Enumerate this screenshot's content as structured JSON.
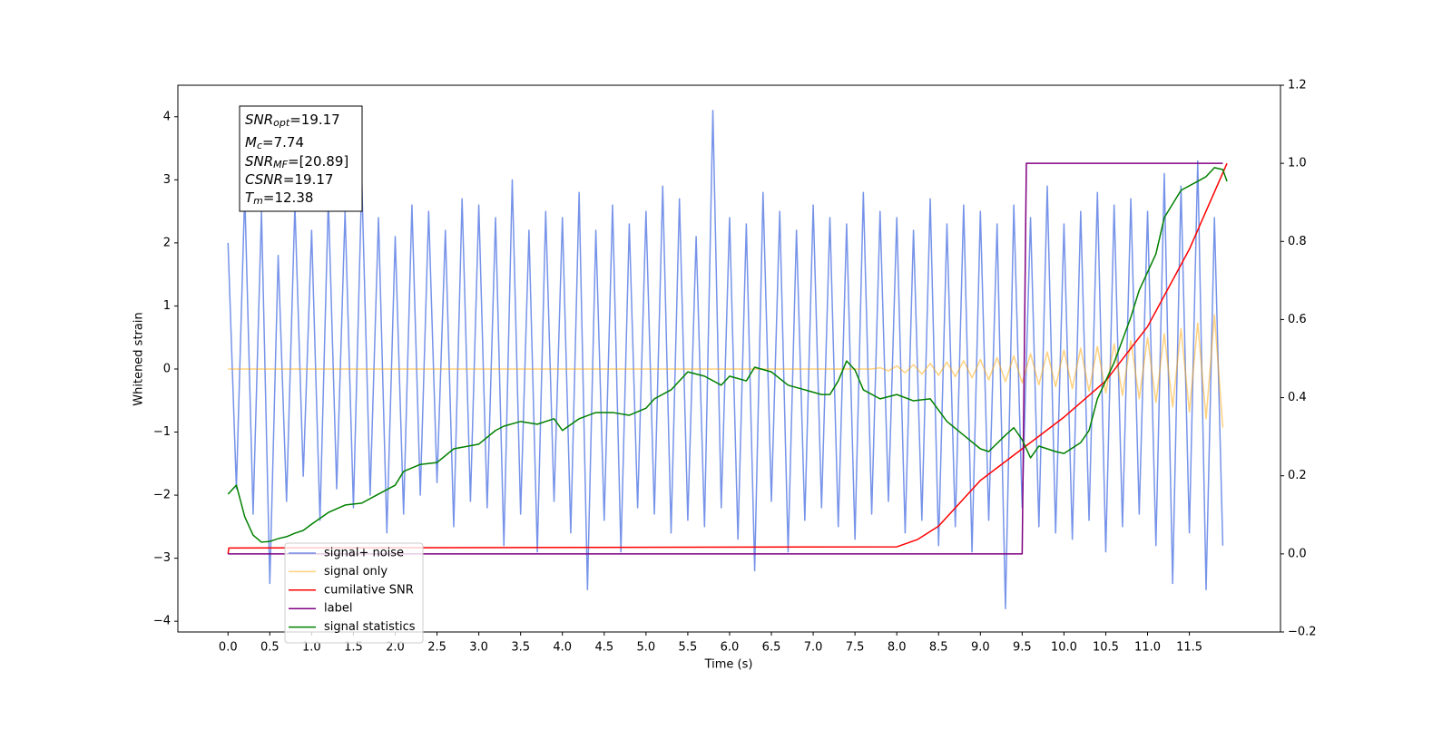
{
  "chart_data": {
    "type": "line",
    "xlabel": "Time (s)",
    "ylabel": "Whitened strain",
    "xlim": [
      -0.6,
      12.59
    ],
    "ylim": [
      -4.17,
      4.5
    ],
    "y2lim": [
      -0.2,
      1.2
    ],
    "xticks": [
      {
        "value": 0,
        "label": "0.0"
      },
      0.5,
      {
        "value": 1,
        "label": "1.0"
      },
      1.5,
      {
        "value": 2,
        "label": "2.0"
      },
      2.5,
      {
        "value": 3,
        "label": "3.0"
      },
      3.5,
      {
        "value": 4,
        "label": "4.0"
      },
      4.5,
      {
        "value": 5,
        "label": "5.0"
      },
      5.5,
      {
        "value": 6,
        "label": "6.0"
      },
      6.5,
      {
        "value": 7,
        "label": "7.0"
      },
      7.5,
      {
        "value": 8,
        "label": "8.0"
      },
      8.5,
      {
        "value": 9,
        "label": "9.0"
      },
      9.5,
      {
        "value": 10,
        "label": "10.0"
      },
      10.5,
      {
        "value": 11,
        "label": "11.0"
      },
      11.5
    ],
    "yticks": [
      {
        "value": -4,
        "label": "−4"
      },
      {
        "value": -3,
        "label": "−3"
      },
      {
        "value": -2,
        "label": "−2"
      },
      {
        "value": -1,
        "label": "−1"
      },
      0,
      1,
      2,
      3,
      4
    ],
    "y2ticks": [
      {
        "value": -0.2,
        "label": "−0.2"
      },
      {
        "value": 0,
        "label": "0.0"
      },
      0.2,
      0.4,
      0.6,
      0.8,
      {
        "value": 1,
        "label": "1.0"
      },
      1.2
    ],
    "legend": "lower left",
    "annotations": [
      {
        "text": "SNR",
        "sub": "opt",
        "rest": "=19.17"
      },
      {
        "text": "M",
        "sub": "c",
        "rest": "=7.74"
      },
      {
        "text": "SNR",
        "sub": "MF",
        "rest": "=[20.89]"
      },
      {
        "text": "CSNR",
        "rest": "=19.17"
      },
      {
        "text": "T",
        "sub": "m",
        "rest": "=12.38"
      }
    ],
    "x": [
      0.0,
      0.1,
      0.2,
      0.3,
      0.4,
      0.5,
      0.6,
      0.7,
      0.8,
      0.9,
      1.0,
      1.1,
      1.2,
      1.3,
      1.4,
      1.5,
      1.6,
      1.7,
      1.8,
      1.9,
      2.0,
      2.1,
      2.2,
      2.3,
      2.4,
      2.5,
      2.6,
      2.7,
      2.8,
      2.9,
      3.0,
      3.1,
      3.2,
      3.3,
      3.4,
      3.5,
      3.6,
      3.7,
      3.8,
      3.9,
      4.0,
      4.1,
      4.2,
      4.3,
      4.4,
      4.5,
      4.6,
      4.7,
      4.8,
      4.9,
      5.0,
      5.1,
      5.2,
      5.3,
      5.4,
      5.5,
      5.6,
      5.7,
      5.8,
      5.9,
      6.0,
      6.1,
      6.2,
      6.3,
      6.4,
      6.5,
      6.6,
      6.7,
      6.8,
      6.9,
      7.0,
      7.1,
      7.2,
      7.3,
      7.4,
      7.5,
      7.6,
      7.7,
      7.8,
      7.9,
      8.0,
      8.1,
      8.2,
      8.3,
      8.4,
      8.5,
      8.6,
      8.7,
      8.8,
      8.9,
      9.0,
      9.1,
      9.2,
      9.3,
      9.4,
      9.5,
      9.6,
      9.7,
      9.8,
      9.9,
      10.0,
      10.1,
      10.2,
      10.3,
      10.4,
      10.5,
      10.6,
      10.7,
      10.8,
      10.9,
      11.0,
      11.1,
      11.2,
      11.3,
      11.4,
      11.5,
      11.6,
      11.7,
      11.8,
      11.9
    ],
    "series": [
      {
        "name": "signal+ noise",
        "color": "#4169e1",
        "alpha": 0.72,
        "values": [
          2.0,
          -1.9,
          2.8,
          -2.3,
          2.5,
          -3.4,
          1.8,
          -2.1,
          2.6,
          -1.7,
          2.2,
          -2.4,
          2.7,
          -1.9,
          2.5,
          -2.2,
          3.0,
          -2.0,
          2.4,
          -2.6,
          2.1,
          -2.3,
          2.6,
          -2.0,
          2.5,
          -1.8,
          2.2,
          -2.5,
          2.7,
          -2.1,
          2.6,
          -2.2,
          2.4,
          -2.8,
          3.0,
          -2.3,
          2.2,
          -2.9,
          2.5,
          -2.1,
          2.4,
          -2.6,
          2.8,
          -3.5,
          2.2,
          -2.4,
          2.6,
          -2.9,
          2.3,
          -2.2,
          2.5,
          -2.3,
          2.9,
          -2.6,
          2.7,
          -2.4,
          2.1,
          -2.5,
          4.1,
          -2.2,
          2.4,
          -2.7,
          2.3,
          -3.2,
          2.8,
          -2.1,
          2.5,
          -2.9,
          2.2,
          -2.4,
          2.6,
          -2.2,
          2.4,
          -2.5,
          2.3,
          -2.7,
          2.8,
          -2.3,
          2.5,
          -2.1,
          2.4,
          -2.6,
          2.2,
          -2.4,
          2.7,
          -2.8,
          2.3,
          -2.5,
          2.6,
          -2.9,
          2.5,
          -2.4,
          2.3,
          -3.8,
          2.6,
          -2.2,
          2.4,
          -2.5,
          2.9,
          -2.6,
          2.3,
          -2.7,
          2.5,
          -2.4,
          2.8,
          -2.9,
          2.6,
          -2.5,
          2.7,
          -2.3,
          2.5,
          -2.8,
          3.1,
          -3.4,
          2.9,
          -2.6,
          3.3,
          -3.5,
          2.4,
          -2.8
        ]
      },
      {
        "name": "signal only",
        "color": "#ffa500",
        "alpha": 0.5,
        "values": [
          0,
          0,
          0,
          0,
          0,
          0,
          0,
          0,
          0,
          0,
          0,
          0,
          0,
          0,
          0,
          0,
          0,
          0,
          0,
          0,
          0,
          0,
          0,
          0,
          0,
          0,
          0,
          0,
          0,
          0,
          0,
          0,
          0,
          0,
          0,
          0,
          0,
          0,
          0,
          0,
          0,
          0,
          0,
          0,
          0,
          0,
          0,
          0,
          0,
          0,
          0,
          0,
          0,
          0,
          0,
          0,
          0,
          0,
          0,
          0,
          0,
          0,
          0,
          0,
          0,
          0,
          0,
          0,
          0,
          0,
          0,
          0,
          0,
          0,
          0,
          0,
          0,
          0,
          0.02,
          -0.03,
          0.05,
          -0.06,
          0.07,
          -0.08,
          0.09,
          -0.1,
          0.11,
          -0.12,
          0.13,
          -0.14,
          0.15,
          -0.17,
          0.18,
          -0.2,
          0.21,
          -0.22,
          0.24,
          -0.25,
          0.27,
          -0.28,
          0.3,
          -0.31,
          0.33,
          -0.35,
          0.36,
          -0.38,
          0.4,
          -0.42,
          0.45,
          -0.47,
          0.5,
          -0.53,
          0.56,
          -0.6,
          0.64,
          -0.68,
          0.73,
          -0.79,
          0.86,
          -0.93
        ]
      },
      {
        "name": "cumilative SNR",
        "color": "#ff0000",
        "axis": "y2",
        "x": [
          0,
          0.01,
          8.0,
          8.25,
          8.5,
          9.0,
          9.5,
          10.0,
          10.5,
          11.0,
          11.5,
          11.95
        ],
        "values": [
          0.0,
          0.015,
          0.018,
          0.037,
          0.071,
          0.188,
          0.269,
          0.35,
          0.443,
          0.582,
          0.78,
          1.0
        ]
      },
      {
        "name": "label",
        "color": "#800080",
        "axis": "y2",
        "x": [
          0,
          9.5,
          9.55,
          11.9
        ],
        "values": [
          0,
          0,
          1,
          1
        ]
      },
      {
        "name": "signal statistics",
        "color": "#008000",
        "axis": "y2",
        "x": [
          0.0,
          0.1,
          0.2,
          0.3,
          0.4,
          0.5,
          0.6,
          0.7,
          0.8,
          0.9,
          1.0,
          1.2,
          1.4,
          1.6,
          1.8,
          2.0,
          2.1,
          2.3,
          2.5,
          2.7,
          3.0,
          3.2,
          3.3,
          3.5,
          3.7,
          3.9,
          4.0,
          4.2,
          4.4,
          4.6,
          4.8,
          5.0,
          5.1,
          5.3,
          5.5,
          5.7,
          5.9,
          6.0,
          6.2,
          6.3,
          6.5,
          6.7,
          6.9,
          7.1,
          7.2,
          7.3,
          7.4,
          7.5,
          7.6,
          7.8,
          8.0,
          8.2,
          8.4,
          8.6,
          8.8,
          9.0,
          9.1,
          9.3,
          9.4,
          9.5,
          9.6,
          9.7,
          9.9,
          10.0,
          10.2,
          10.3,
          10.4,
          10.6,
          10.8,
          10.9,
          11.1,
          11.2,
          11.4,
          11.6,
          11.7,
          11.8,
          11.9,
          11.95
        ],
        "values": [
          0.153,
          0.176,
          0.095,
          0.048,
          0.03,
          0.032,
          0.039,
          0.044,
          0.053,
          0.06,
          0.076,
          0.106,
          0.125,
          0.13,
          0.153,
          0.176,
          0.211,
          0.229,
          0.234,
          0.269,
          0.281,
          0.316,
          0.327,
          0.339,
          0.332,
          0.346,
          0.316,
          0.346,
          0.362,
          0.362,
          0.355,
          0.373,
          0.397,
          0.42,
          0.466,
          0.455,
          0.432,
          0.455,
          0.443,
          0.478,
          0.466,
          0.432,
          0.42,
          0.408,
          0.408,
          0.443,
          0.494,
          0.471,
          0.42,
          0.397,
          0.408,
          0.392,
          0.397,
          0.339,
          0.304,
          0.269,
          0.262,
          0.304,
          0.323,
          0.292,
          0.246,
          0.276,
          0.262,
          0.257,
          0.285,
          0.316,
          0.397,
          0.49,
          0.606,
          0.675,
          0.768,
          0.861,
          0.931,
          0.954,
          0.966,
          0.989,
          0.984,
          0.954
        ]
      }
    ]
  }
}
